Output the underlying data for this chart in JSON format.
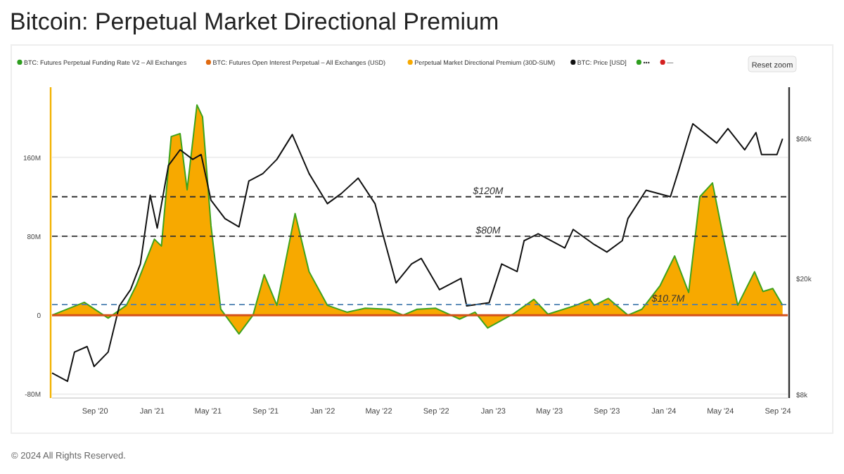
{
  "chart_data": {
    "type": "area",
    "title": "Bitcoin: Perpetual Market Directional Premium",
    "x": [
      "2020-06-01",
      "2020-08-09",
      "2020-09-29",
      "2020-11-07",
      "2020-11-28",
      "2021-01-06",
      "2021-01-21",
      "2021-02-11",
      "2021-03-02",
      "2021-03-17",
      "2021-04-07",
      "2021-04-19",
      "2021-05-07",
      "2021-05-28",
      "2021-07-06",
      "2021-08-05",
      "2021-08-29",
      "2021-09-25",
      "2021-11-03",
      "2021-12-03",
      "2022-01-11",
      "2022-02-22",
      "2022-04-02",
      "2022-05-23",
      "2022-06-22",
      "2022-07-22",
      "2022-08-31",
      "2022-10-21",
      "2022-11-23",
      "2022-12-20",
      "2023-02-12",
      "2023-03-29",
      "2023-04-28",
      "2023-06-27",
      "2023-07-27",
      "2023-08-05",
      "2023-09-04",
      "2023-10-16",
      "2023-11-15",
      "2023-12-24",
      "2024-01-24",
      "2024-02-23",
      "2024-03-18",
      "2024-04-14",
      "2024-05-08",
      "2024-06-07",
      "2024-07-13",
      "2024-07-31",
      "2024-08-21",
      "2024-09-11"
    ],
    "series": [
      {
        "name": "BTC: Futures Perpetual Funding Rate V2 – All Exchanges",
        "color": "#2e9e1f",
        "type": "line",
        "values": [
          null,
          null,
          null,
          null,
          null,
          null,
          null,
          null,
          null,
          null,
          null,
          null,
          null,
          null,
          null,
          null,
          null,
          null,
          null,
          null,
          null,
          null,
          null,
          null,
          null,
          null,
          null,
          null,
          null,
          null,
          null,
          null,
          null,
          null,
          null,
          null,
          null,
          null,
          null,
          null,
          null,
          null,
          null,
          null,
          null,
          null,
          null,
          null,
          null,
          null
        ]
      },
      {
        "name": "BTC: Futures Open Interest Perpetual – All Exchanges (USD)",
        "color": "#e06a10",
        "type": "line",
        "values": [
          null,
          null,
          null,
          null,
          null,
          null,
          null,
          null,
          null,
          null,
          null,
          null,
          null,
          null,
          null,
          null,
          null,
          null,
          null,
          null,
          null,
          null,
          null,
          null,
          null,
          null,
          null,
          null,
          null,
          null,
          null,
          null,
          null,
          null,
          null,
          null,
          null,
          null,
          null,
          null,
          null,
          null,
          null,
          null,
          null,
          null,
          null,
          null,
          null,
          null
        ]
      },
      {
        "name": "Perpetual Market Directional Premium (30D-SUM)",
        "color": "#f7a900",
        "values": [
          0,
          13,
          -3,
          10,
          30,
          77,
          70,
          181,
          184,
          127,
          213,
          201,
          91,
          6,
          -19,
          0,
          41,
          10,
          103,
          44,
          10,
          3,
          7,
          6,
          0,
          6,
          7,
          -4,
          3,
          -13,
          1,
          16,
          1,
          10,
          16,
          10,
          17,
          0,
          6,
          30,
          60,
          23,
          120,
          134,
          77,
          10,
          44,
          24,
          27,
          10
        ]
      },
      {
        "name": "BTC: Price [USD]",
        "color": "#111111",
        "type": "line",
        "axis": "y2",
        "x": [
          "2020-06-01",
          "2020-07-04",
          "2020-07-19",
          "2020-08-15",
          "2020-08-30",
          "2020-09-29",
          "2020-10-23",
          "2020-11-16",
          "2020-12-07",
          "2020-12-28",
          "2021-01-12",
          "2021-02-05",
          "2021-03-02",
          "2021-03-29",
          "2021-04-16",
          "2021-05-07",
          "2021-06-06",
          "2021-07-06",
          "2021-07-27",
          "2021-08-26",
          "2021-09-25",
          "2021-10-28",
          "2021-12-03",
          "2022-01-11",
          "2022-02-10",
          "2022-03-18",
          "2022-04-23",
          "2022-05-08",
          "2022-06-07",
          "2022-07-10",
          "2022-07-31",
          "2022-09-08",
          "2022-10-24",
          "2022-11-05",
          "2022-12-23",
          "2023-01-19",
          "2023-02-21",
          "2023-03-08",
          "2023-04-07",
          "2023-06-03",
          "2023-06-21",
          "2023-08-05",
          "2023-09-01",
          "2023-10-04",
          "2023-10-16",
          "2023-11-24",
          "2024-01-15",
          "2024-02-02",
          "2024-02-23",
          "2024-03-03",
          "2024-04-23",
          "2024-05-17",
          "2024-06-22",
          "2024-07-16",
          "2024-07-28",
          "2024-08-30",
          "2024-09-11"
        ],
        "values": [
          9500,
          8900,
          11200,
          11700,
          10000,
          11200,
          16100,
          18300,
          22400,
          38500,
          29700,
          48600,
          55000,
          51000,
          53000,
          37000,
          32000,
          30000,
          43000,
          45600,
          51000,
          62000,
          45600,
          36000,
          39000,
          44000,
          36000,
          29000,
          19300,
          22400,
          23400,
          18300,
          20000,
          16100,
          16500,
          22400,
          21100,
          26900,
          28400,
          25400,
          29400,
          26100,
          24600,
          26900,
          32000,
          40000,
          38000,
          47000,
          61000,
          67500,
          58000,
          65000,
          55000,
          63000,
          53000,
          53000,
          60000
        ]
      },
      {
        "name": "•••",
        "color": "#2e9e1f",
        "type": "line",
        "values": [
          null,
          null,
          null,
          null,
          null,
          null,
          null,
          null,
          null,
          null,
          null,
          null,
          null,
          null,
          null,
          null,
          null,
          null,
          null,
          null,
          null,
          null,
          null,
          null,
          null,
          null,
          null,
          null,
          null,
          null,
          null,
          null,
          null,
          null,
          null,
          null,
          null,
          null,
          null,
          null,
          null,
          null,
          null,
          null,
          null,
          null,
          null,
          null,
          null,
          null
        ]
      },
      {
        "name": "—",
        "color": "#d42020",
        "type": "line",
        "values": [
          null,
          null,
          null,
          null,
          null,
          null,
          null,
          null,
          null,
          null,
          null,
          null,
          null,
          null,
          null,
          null,
          null,
          null,
          null,
          null,
          null,
          null,
          null,
          null,
          null,
          null,
          null,
          null,
          null,
          null,
          null,
          null,
          null,
          null,
          null,
          null,
          null,
          null,
          null,
          null,
          null,
          null,
          null,
          null,
          null,
          null,
          null,
          null,
          null,
          null
        ]
      }
    ],
    "xlim": [
      "2020-06-01",
      "2024-09-22"
    ],
    "xticks": [
      {
        "value": "2020-09-01",
        "label": "Sep '20"
      },
      {
        "value": "2021-01-01",
        "label": "Jan '21"
      },
      {
        "value": "2021-05-01",
        "label": "May '21"
      },
      {
        "value": "2021-09-01",
        "label": "Sep '21"
      },
      {
        "value": "2022-01-01",
        "label": "Jan '22"
      },
      {
        "value": "2022-05-01",
        "label": "May '22"
      },
      {
        "value": "2022-09-01",
        "label": "Sep '22"
      },
      {
        "value": "2023-01-01",
        "label": "Jan '23"
      },
      {
        "value": "2023-05-01",
        "label": "May '23"
      },
      {
        "value": "2023-09-01",
        "label": "Sep '23"
      },
      {
        "value": "2024-01-01",
        "label": "Jan '24"
      },
      {
        "value": "2024-05-01",
        "label": "May '24"
      },
      {
        "value": "2024-09-01",
        "label": "Sep '24"
      }
    ],
    "ylim": [
      -84,
      231
    ],
    "yticks": [
      {
        "value": -80,
        "label": "-80M"
      },
      {
        "value": 0,
        "label": "0"
      },
      {
        "value": 80,
        "label": "80M"
      },
      {
        "value": 160,
        "label": "160M"
      }
    ],
    "y2lim": [
      7800,
      90000
    ],
    "y2ticks": [
      {
        "value": 8000,
        "label": "$8k"
      },
      {
        "value": 20000,
        "label": "$20k"
      },
      {
        "value": 60000,
        "label": "$60k"
      }
    ],
    "log": "y2",
    "grid": "y",
    "legend": "top",
    "ref_lines": [
      {
        "axis": "y",
        "value": 120,
        "label": "$120M",
        "color": "#333333",
        "line_style": "dashed"
      },
      {
        "axis": "y",
        "value": 80,
        "label": "$80M",
        "color": "#333333",
        "line_style": "dashed"
      },
      {
        "axis": "y",
        "value": 10.7,
        "label": "$10.7M",
        "color": "#4a7fb0",
        "line_style": "dashed"
      },
      {
        "axis": "y",
        "value": 0,
        "color": "#d4521b",
        "line_style": "solid"
      }
    ],
    "annotations": [
      "Reset zoom",
      "© 2024 All Rights Reserved."
    ]
  }
}
